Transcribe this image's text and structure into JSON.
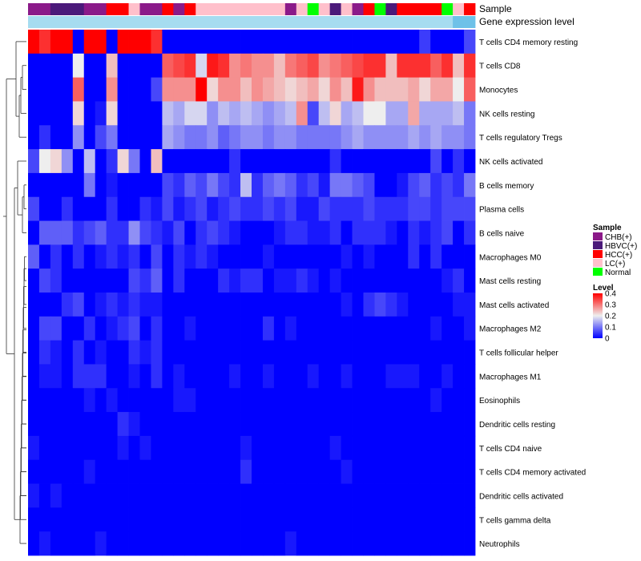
{
  "chart_data": {
    "type": "heatmap",
    "title": "",
    "annotation_tracks": [
      {
        "name": "Sample",
        "values": [
          "CHB(+)",
          "CHB(+)",
          "HBVC(+)",
          "HBVC(+)",
          "HBVC(+)",
          "CHB(+)",
          "CHB(+)",
          "HCC(+)",
          "HCC(+)",
          "LC(+)",
          "CHB(+)",
          "CHB(+)",
          "HCC(+)",
          "CHB(+)",
          "HCC(+)",
          "LC(+)",
          "LC(+)",
          "LC(+)",
          "LC(+)",
          "LC(+)",
          "LC(+)",
          "LC(+)",
          "LC(+)",
          "CHB(+)",
          "LC(+)",
          "Normal",
          "LC(+)",
          "HBVC(+)",
          "LC(+)",
          "CHB(+)",
          "HCC(+)",
          "Normal",
          "HBVC(+)",
          "HCC(+)",
          "HCC(+)",
          "HCC(+)",
          "HCC(+)",
          "Normal",
          "LC(+)",
          "HCC(+)"
        ]
      },
      {
        "name": "Gene expression level",
        "values": [
          "low",
          "low",
          "low",
          "low",
          "low",
          "low",
          "low",
          "low",
          "low",
          "low",
          "low",
          "low",
          "low",
          "low",
          "low",
          "low",
          "low",
          "low",
          "low",
          "low",
          "low",
          "low",
          "low",
          "low",
          "low",
          "low",
          "low",
          "low",
          "low",
          "low",
          "low",
          "low",
          "low",
          "low",
          "low",
          "low",
          "low",
          "low",
          "high",
          "high"
        ]
      }
    ],
    "annotation_colors": {
      "Sample": {
        "CHB(+)": "#8B1A89",
        "HBVC(+)": "#4B1A7A",
        "HCC(+)": "#FF0000",
        "LC(+)": "#FFC0CB",
        "Normal": "#00FF00"
      },
      "Gene expression level": {
        "low": "#A6DCF0",
        "high": "#6EC1E8"
      }
    },
    "rows": [
      "T cells CD4 memory resting",
      "T cells CD8",
      "Monocytes",
      "NK cells resting",
      "T cells regulatory  Tregs",
      "NK cells activated",
      "B cells memory",
      "Plasma cells",
      "B cells naive",
      "Macrophages M0",
      "Mast cells resting",
      "Mast cells activated",
      "Macrophages M2",
      "T cells follicular helper",
      "Macrophages M1",
      "Eosinophils",
      "Dendritic cells resting",
      "T cells CD4 naive",
      "T cells CD4 memory activated",
      "Dendritic cells activated",
      "T cells gamma delta",
      "Neutrophils"
    ],
    "columns": 40,
    "values": [
      [
        0.4,
        0.36,
        0.4,
        0.4,
        0.0,
        0.4,
        0.4,
        0.0,
        0.4,
        0.4,
        0.4,
        0.36,
        0.0,
        0.0,
        0.0,
        0.0,
        0.0,
        0.0,
        0.0,
        0.0,
        0.0,
        0.0,
        0.0,
        0.0,
        0.0,
        0.0,
        0.0,
        0.0,
        0.0,
        0.0,
        0.0,
        0.0,
        0.0,
        0.0,
        0.0,
        0.05,
        0.0,
        0.0,
        0.0,
        0.06
      ],
      [
        0.0,
        0.0,
        0.0,
        0.0,
        0.2,
        0.0,
        0.0,
        0.24,
        0.0,
        0.0,
        0.0,
        0.0,
        0.32,
        0.34,
        0.36,
        0.18,
        0.38,
        0.36,
        0.28,
        0.3,
        0.28,
        0.28,
        0.24,
        0.3,
        0.32,
        0.34,
        0.28,
        0.3,
        0.32,
        0.34,
        0.36,
        0.36,
        0.24,
        0.36,
        0.36,
        0.36,
        0.32,
        0.36,
        0.24,
        0.36
      ],
      [
        0.0,
        0.0,
        0.0,
        0.0,
        0.32,
        0.0,
        0.0,
        0.28,
        0.0,
        0.0,
        0.0,
        0.06,
        0.28,
        0.28,
        0.28,
        0.4,
        0.22,
        0.28,
        0.28,
        0.24,
        0.28,
        0.26,
        0.24,
        0.22,
        0.24,
        0.26,
        0.22,
        0.28,
        0.24,
        0.38,
        0.28,
        0.24,
        0.24,
        0.24,
        0.26,
        0.22,
        0.26,
        0.26,
        0.2,
        0.32
      ],
      [
        0.0,
        0.0,
        0.0,
        0.0,
        0.22,
        0.0,
        0.02,
        0.22,
        0.0,
        0.0,
        0.0,
        0.0,
        0.16,
        0.14,
        0.18,
        0.18,
        0.12,
        0.16,
        0.14,
        0.16,
        0.14,
        0.12,
        0.14,
        0.16,
        0.28,
        0.06,
        0.16,
        0.22,
        0.14,
        0.16,
        0.2,
        0.2,
        0.14,
        0.14,
        0.26,
        0.14,
        0.14,
        0.14,
        0.16,
        0.1
      ],
      [
        0.0,
        0.04,
        0.0,
        0.0,
        0.12,
        0.0,
        0.06,
        0.1,
        0.0,
        0.0,
        0.0,
        0.0,
        0.14,
        0.12,
        0.1,
        0.1,
        0.12,
        0.08,
        0.1,
        0.12,
        0.12,
        0.1,
        0.12,
        0.12,
        0.1,
        0.1,
        0.1,
        0.1,
        0.12,
        0.14,
        0.12,
        0.12,
        0.12,
        0.12,
        0.14,
        0.12,
        0.14,
        0.12,
        0.12,
        0.1
      ],
      [
        0.06,
        0.2,
        0.22,
        0.12,
        0.0,
        0.16,
        0.0,
        0.04,
        0.22,
        0.1,
        0.0,
        0.24,
        0.0,
        0.0,
        0.0,
        0.0,
        0.0,
        0.0,
        0.04,
        0.0,
        0.0,
        0.0,
        0.0,
        0.0,
        0.0,
        0.0,
        0.0,
        0.04,
        0.0,
        0.0,
        0.0,
        0.0,
        0.0,
        0.0,
        0.0,
        0.0,
        0.06,
        0.0,
        0.04,
        0.0
      ],
      [
        0.0,
        0.0,
        0.0,
        0.0,
        0.0,
        0.1,
        0.0,
        0.02,
        0.0,
        0.0,
        0.0,
        0.0,
        0.06,
        0.04,
        0.08,
        0.06,
        0.1,
        0.06,
        0.04,
        0.16,
        0.04,
        0.08,
        0.1,
        0.08,
        0.04,
        0.06,
        0.02,
        0.1,
        0.1,
        0.08,
        0.06,
        0.0,
        0.0,
        0.02,
        0.06,
        0.08,
        0.04,
        0.06,
        0.04,
        0.1
      ],
      [
        0.06,
        0.0,
        0.0,
        0.04,
        0.0,
        0.0,
        0.0,
        0.04,
        0.0,
        0.0,
        0.04,
        0.02,
        0.06,
        0.02,
        0.04,
        0.06,
        0.02,
        0.04,
        0.06,
        0.04,
        0.04,
        0.06,
        0.04,
        0.06,
        0.02,
        0.02,
        0.06,
        0.04,
        0.04,
        0.04,
        0.06,
        0.04,
        0.04,
        0.04,
        0.06,
        0.06,
        0.04,
        0.06,
        0.06,
        0.06
      ],
      [
        0.0,
        0.08,
        0.08,
        0.08,
        0.04,
        0.06,
        0.08,
        0.04,
        0.04,
        0.12,
        0.06,
        0.04,
        0.02,
        0.06,
        0.0,
        0.04,
        0.06,
        0.04,
        0.02,
        0.0,
        0.0,
        0.0,
        0.02,
        0.04,
        0.04,
        0.02,
        0.02,
        0.04,
        0.0,
        0.04,
        0.04,
        0.04,
        0.02,
        0.0,
        0.04,
        0.02,
        0.04,
        0.06,
        0.0,
        0.04
      ],
      [
        0.08,
        0.0,
        0.04,
        0.0,
        0.04,
        0.0,
        0.02,
        0.04,
        0.02,
        0.04,
        0.0,
        0.06,
        0.0,
        0.04,
        0.02,
        0.04,
        0.02,
        0.0,
        0.0,
        0.0,
        0.0,
        0.02,
        0.0,
        0.0,
        0.0,
        0.0,
        0.0,
        0.0,
        0.02,
        0.0,
        0.02,
        0.0,
        0.0,
        0.0,
        0.04,
        0.0,
        0.04,
        0.0,
        0.0,
        0.0
      ],
      [
        0.0,
        0.06,
        0.04,
        0.0,
        0.0,
        0.0,
        0.0,
        0.0,
        0.0,
        0.06,
        0.04,
        0.08,
        0.0,
        0.04,
        0.0,
        0.0,
        0.0,
        0.04,
        0.02,
        0.04,
        0.04,
        0.0,
        0.02,
        0.02,
        0.04,
        0.02,
        0.0,
        0.02,
        0.0,
        0.0,
        0.0,
        0.0,
        0.0,
        0.0,
        0.0,
        0.0,
        0.0,
        0.02,
        0.04,
        0.0
      ],
      [
        0.0,
        0.0,
        0.0,
        0.04,
        0.06,
        0.0,
        0.02,
        0.04,
        0.02,
        0.04,
        0.02,
        0.02,
        0.0,
        0.0,
        0.0,
        0.0,
        0.0,
        0.0,
        0.0,
        0.0,
        0.0,
        0.0,
        0.0,
        0.0,
        0.0,
        0.0,
        0.0,
        0.0,
        0.02,
        0.0,
        0.04,
        0.06,
        0.04,
        0.02,
        0.0,
        0.0,
        0.0,
        0.0,
        0.02,
        0.02
      ],
      [
        0.0,
        0.06,
        0.06,
        0.0,
        0.0,
        0.04,
        0.0,
        0.02,
        0.04,
        0.06,
        0.0,
        0.04,
        0.0,
        0.0,
        0.02,
        0.0,
        0.0,
        0.0,
        0.0,
        0.0,
        0.0,
        0.04,
        0.0,
        0.02,
        0.0,
        0.0,
        0.0,
        0.0,
        0.0,
        0.0,
        0.0,
        0.0,
        0.0,
        0.0,
        0.0,
        0.0,
        0.02,
        0.0,
        0.0,
        0.02
      ],
      [
        0.0,
        0.04,
        0.02,
        0.0,
        0.04,
        0.0,
        0.02,
        0.0,
        0.0,
        0.04,
        0.02,
        0.04,
        0.0,
        0.0,
        0.0,
        0.0,
        0.0,
        0.0,
        0.0,
        0.0,
        0.0,
        0.0,
        0.0,
        0.0,
        0.0,
        0.0,
        0.0,
        0.0,
        0.0,
        0.0,
        0.0,
        0.0,
        0.0,
        0.0,
        0.0,
        0.0,
        0.0,
        0.0,
        0.0,
        0.0
      ],
      [
        0.0,
        0.02,
        0.02,
        0.0,
        0.04,
        0.04,
        0.04,
        0.0,
        0.0,
        0.02,
        0.0,
        0.04,
        0.0,
        0.02,
        0.0,
        0.0,
        0.0,
        0.0,
        0.02,
        0.0,
        0.0,
        0.02,
        0.0,
        0.0,
        0.0,
        0.02,
        0.0,
        0.0,
        0.02,
        0.0,
        0.0,
        0.0,
        0.02,
        0.02,
        0.02,
        0.0,
        0.0,
        0.02,
        0.0,
        0.0
      ],
      [
        0.0,
        0.0,
        0.0,
        0.0,
        0.0,
        0.02,
        0.0,
        0.02,
        0.0,
        0.0,
        0.0,
        0.0,
        0.0,
        0.02,
        0.02,
        0.0,
        0.0,
        0.0,
        0.0,
        0.0,
        0.0,
        0.0,
        0.0,
        0.0,
        0.0,
        0.0,
        0.0,
        0.0,
        0.0,
        0.0,
        0.0,
        0.0,
        0.0,
        0.0,
        0.0,
        0.0,
        0.02,
        0.0,
        0.0,
        0.0
      ],
      [
        0.0,
        0.0,
        0.0,
        0.0,
        0.0,
        0.0,
        0.0,
        0.0,
        0.04,
        0.02,
        0.0,
        0.0,
        0.0,
        0.0,
        0.0,
        0.0,
        0.0,
        0.0,
        0.0,
        0.0,
        0.0,
        0.0,
        0.0,
        0.0,
        0.0,
        0.0,
        0.0,
        0.0,
        0.0,
        0.0,
        0.0,
        0.0,
        0.0,
        0.0,
        0.0,
        0.0,
        0.0,
        0.0,
        0.0,
        0.0
      ],
      [
        0.02,
        0.0,
        0.0,
        0.0,
        0.0,
        0.0,
        0.0,
        0.0,
        0.02,
        0.0,
        0.02,
        0.0,
        0.0,
        0.0,
        0.0,
        0.0,
        0.0,
        0.0,
        0.0,
        0.02,
        0.0,
        0.0,
        0.0,
        0.0,
        0.0,
        0.0,
        0.0,
        0.02,
        0.0,
        0.0,
        0.0,
        0.0,
        0.0,
        0.0,
        0.0,
        0.0,
        0.0,
        0.0,
        0.0,
        0.0
      ],
      [
        0.0,
        0.0,
        0.0,
        0.0,
        0.0,
        0.02,
        0.0,
        0.0,
        0.0,
        0.0,
        0.0,
        0.0,
        0.0,
        0.0,
        0.0,
        0.0,
        0.0,
        0.0,
        0.0,
        0.04,
        0.0,
        0.0,
        0.0,
        0.0,
        0.0,
        0.0,
        0.0,
        0.0,
        0.02,
        0.0,
        0.0,
        0.0,
        0.0,
        0.0,
        0.0,
        0.0,
        0.0,
        0.0,
        0.0,
        0.0
      ],
      [
        0.02,
        0.0,
        0.02,
        0.0,
        0.0,
        0.0,
        0.0,
        0.0,
        0.0,
        0.0,
        0.0,
        0.0,
        0.0,
        0.0,
        0.0,
        0.0,
        0.0,
        0.0,
        0.0,
        0.0,
        0.0,
        0.0,
        0.0,
        0.0,
        0.0,
        0.0,
        0.0,
        0.0,
        0.0,
        0.0,
        0.0,
        0.0,
        0.0,
        0.0,
        0.0,
        0.0,
        0.0,
        0.0,
        0.0,
        0.0
      ],
      [
        0.0,
        0.0,
        0.0,
        0.0,
        0.0,
        0.0,
        0.0,
        0.0,
        0.0,
        0.0,
        0.0,
        0.0,
        0.0,
        0.0,
        0.0,
        0.0,
        0.0,
        0.0,
        0.0,
        0.0,
        0.0,
        0.0,
        0.0,
        0.0,
        0.0,
        0.0,
        0.0,
        0.0,
        0.0,
        0.0,
        0.0,
        0.0,
        0.0,
        0.0,
        0.0,
        0.0,
        0.0,
        0.0,
        0.0,
        0.0
      ],
      [
        0.0,
        0.02,
        0.0,
        0.0,
        0.0,
        0.0,
        0.02,
        0.0,
        0.0,
        0.0,
        0.0,
        0.0,
        0.0,
        0.0,
        0.0,
        0.0,
        0.0,
        0.0,
        0.0,
        0.0,
        0.0,
        0.0,
        0.0,
        0.02,
        0.0,
        0.0,
        0.0,
        0.0,
        0.0,
        0.0,
        0.0,
        0.0,
        0.0,
        0.0,
        0.0,
        0.0,
        0.0,
        0.0,
        0.0,
        0.0
      ]
    ],
    "color_scale": {
      "min": 0,
      "mid": 0.2,
      "max": 0.4,
      "min_color": "#0000FF",
      "mid_color": "#EEEEEE",
      "max_color": "#FF0000"
    },
    "legends": [
      {
        "title": "Sample",
        "items": [
          "CHB(+)",
          "HBVC(+)",
          "HCC(+)",
          "LC(+)",
          "Normal"
        ]
      },
      {
        "title": "Level",
        "ticks": [
          "0.4",
          "0.3",
          "0.2",
          "0.1",
          "0"
        ],
        "tick_values": [
          0.4,
          0.3,
          0.2,
          0.1,
          0
        ]
      }
    ],
    "legend_position": "right",
    "row_dendrogram": "left"
  }
}
